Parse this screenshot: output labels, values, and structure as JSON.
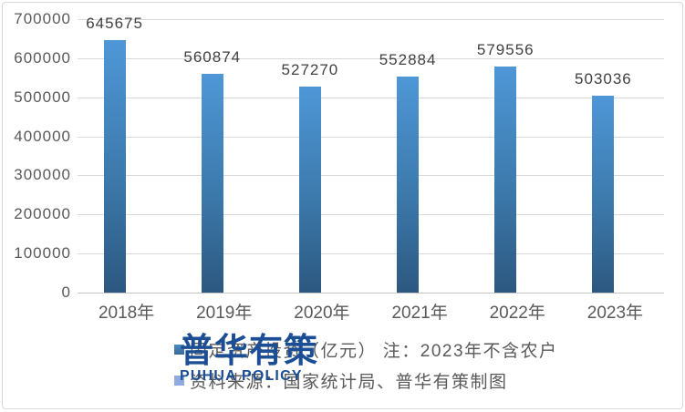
{
  "chart_data": {
    "type": "bar",
    "categories": [
      "2018年",
      "2019年",
      "2020年",
      "2021年",
      "2022年",
      "2023年"
    ],
    "values": [
      645675,
      560874,
      527270,
      552884,
      579556,
      503036
    ],
    "title": "",
    "xlabel": "",
    "ylabel": "",
    "ylim": [
      0,
      700000
    ],
    "ytick_step": 100000,
    "ytick_labels": [
      "700000",
      "600000",
      "500000",
      "400000",
      "300000",
      "200000",
      "100000",
      "0"
    ],
    "grid": true,
    "data_labels": true,
    "legend_position": "bottom",
    "series": [
      {
        "name": "固定资产投资（亿元） 注：2023年不含农户",
        "marker_color": "#4f81bd"
      },
      {
        "name": "资料来源：国家统计局、普华有策制图",
        "marker_color": "#8faadc"
      }
    ]
  },
  "watermark": {
    "title": "普华有策",
    "subtitle": "PUHUA POLICY",
    "color": "#1b4e94"
  },
  "colors": {
    "bar_gradient_top": "#4e97d7",
    "bar_gradient_bottom": "#2c5880",
    "gridline": "#d9d9d9",
    "axis_baseline": "#c3c3c3",
    "tick_label": "#595959",
    "data_label": "#404040",
    "legend_text": "#595959",
    "background": "#ffffff",
    "frame_border": "#d9d9d9"
  }
}
